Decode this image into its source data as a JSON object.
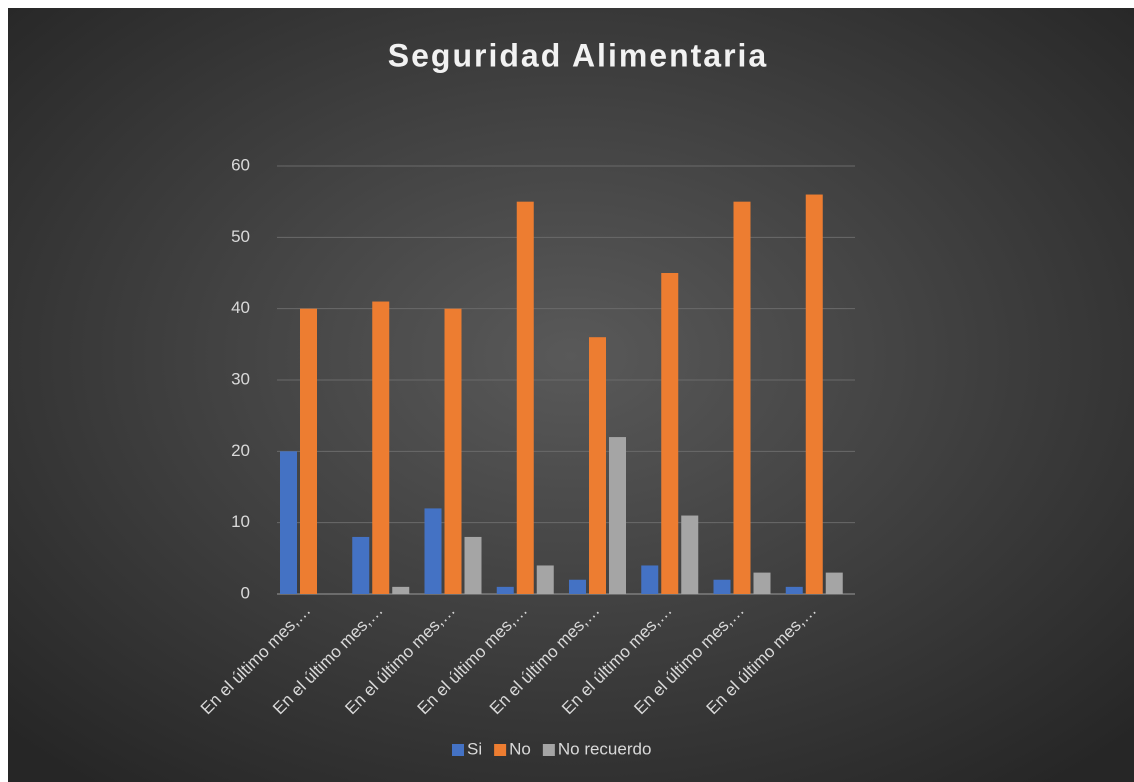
{
  "chart_data": {
    "type": "bar",
    "title": "Seguridad Alimentaria",
    "categories": [
      "En el último mes,…",
      "En el último mes,…",
      "En el último mes,…",
      "En el último mes,…",
      "En el último mes,…",
      "En el último mes,…",
      "En el último mes,…",
      "En el último mes,…"
    ],
    "series": [
      {
        "name": "Si",
        "color": "#4472c4",
        "values": [
          20,
          8,
          12,
          1,
          2,
          4,
          2,
          1
        ]
      },
      {
        "name": "No",
        "color": "#ed7d31",
        "values": [
          40,
          41,
          40,
          55,
          36,
          45,
          55,
          56
        ]
      },
      {
        "name": "No recuerdo",
        "color": "#a5a5a5",
        "values": [
          0,
          1,
          8,
          4,
          22,
          11,
          3,
          3
        ]
      }
    ],
    "ylim": [
      0,
      60
    ],
    "yticks": [
      0,
      10,
      20,
      30,
      40,
      50,
      60
    ],
    "grid": true,
    "legend": "bottom"
  }
}
